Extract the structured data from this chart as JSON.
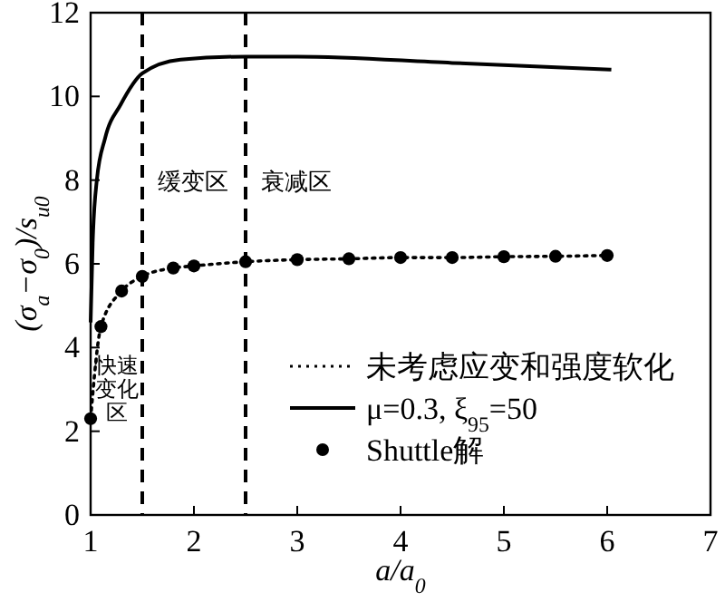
{
  "chart_data": {
    "type": "line",
    "xlabel": "a/a$_{0}$",
    "ylabel": "(σ$_{a}$−σ$_{0}$)/s$_{u0}$",
    "xlim": [
      1,
      7
    ],
    "xticks": [
      1,
      2,
      3,
      4,
      5,
      6,
      7
    ],
    "ylim": [
      0,
      12
    ],
    "yticks": [
      0,
      2,
      4,
      6,
      8,
      10,
      12
    ],
    "grid": false,
    "legend": "bottom right",
    "series": [
      {
        "name": "未考虑应变和强度软化",
        "line_style": "dotted",
        "color": "#000000",
        "x": [
          1,
          1.1,
          1.3,
          1.5,
          1.8,
          2,
          2.5,
          3,
          3.5,
          4,
          4.5,
          5,
          5.5,
          6
        ],
        "values": [
          2.3,
          4.5,
          5.35,
          5.7,
          5.9,
          5.95,
          6.05,
          6.1,
          6.12,
          6.15,
          6.15,
          6.17,
          6.18,
          6.2
        ]
      },
      {
        "name": "μ=0.3, ξ$_{95}$=50",
        "line_style": "solid",
        "color": "#000000",
        "x": [
          1,
          1.02,
          1.06,
          1.14,
          1.29,
          1.5,
          1.87,
          2.5,
          3,
          4.5,
          6.04
        ],
        "values": [
          4.6,
          6.5,
          8,
          9,
          9.8,
          10.55,
          10.88,
          10.95,
          10.95,
          10.8,
          10.64
        ]
      },
      {
        "name": "Shuttle解",
        "type": "scatter",
        "marker": "circle",
        "color": "#000000",
        "x": [
          1,
          1.1,
          1.3,
          1.5,
          1.8,
          2,
          2.5,
          3,
          3.5,
          4,
          4.5,
          5,
          5.5,
          6
        ],
        "values": [
          2.3,
          4.5,
          5.35,
          5.7,
          5.9,
          5.95,
          6.05,
          6.1,
          6.12,
          6.15,
          6.15,
          6.17,
          6.18,
          6.2
        ]
      }
    ],
    "ref_lines": [
      {
        "axis": "x",
        "value": 1.5,
        "line_style": "dashed",
        "label": "缓变区"
      },
      {
        "axis": "x",
        "value": 2.5,
        "line_style": "dashed",
        "label": "衰减区"
      }
    ],
    "annotations": [
      "快速变化区"
    ]
  }
}
